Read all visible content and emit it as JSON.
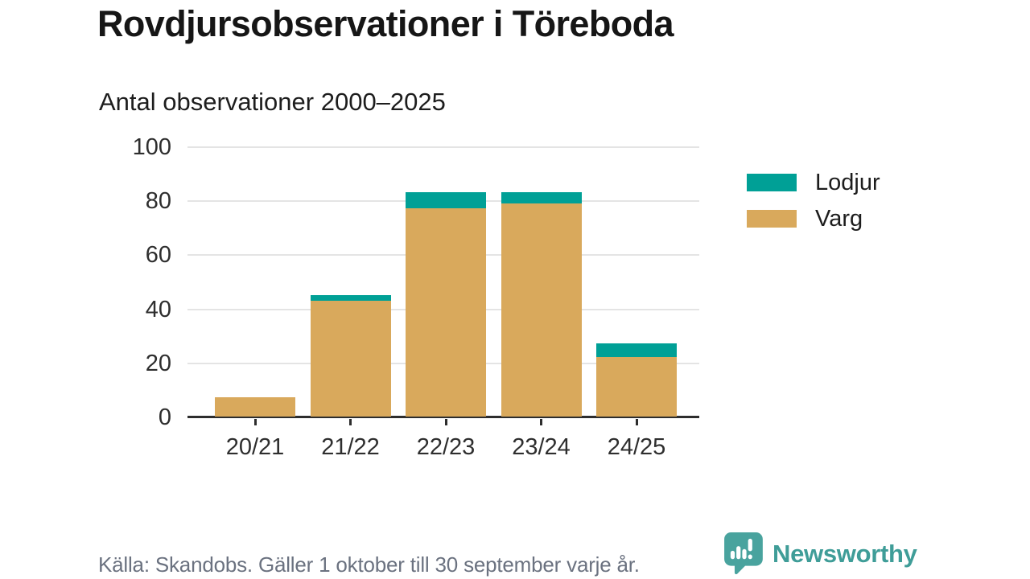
{
  "header": {
    "title": "Rovdjursobservationer i Töreboda",
    "subtitle": "Antal observationer 2000–2025"
  },
  "chart_data": {
    "type": "bar",
    "stacked": true,
    "title": "Rovdjursobservationer i Töreboda",
    "subtitle": "Antal observationer 2000–2025",
    "categories": [
      "20/21",
      "21/22",
      "22/23",
      "23/24",
      "24/25"
    ],
    "series": [
      {
        "name": "Lodjur",
        "color": "#00a096",
        "values": [
          0,
          2,
          6,
          4,
          5
        ]
      },
      {
        "name": "Varg",
        "color": "#d9a95c",
        "values": [
          7,
          43,
          77,
          79,
          22
        ]
      }
    ],
    "stack_order": [
      "Varg",
      "Lodjur"
    ],
    "totals": [
      7,
      45,
      83,
      83,
      27
    ],
    "xlabel": "",
    "ylabel": "",
    "ylim": [
      0,
      100
    ],
    "yticks": [
      0,
      20,
      40,
      60,
      80,
      100
    ],
    "grid": "horizontal",
    "legend_position": "right"
  },
  "colors": {
    "lodjur_teal": "#00a096",
    "varg_gold": "#d9a95c",
    "gridline": "#e4e4e4",
    "axis": "#2d2d2d",
    "brand_teal": "#49a39e",
    "brand_text_teal": "#3f9d98",
    "source_gray": "#6b7280"
  },
  "footer": {
    "source": "Källa: Skandobs. Gäller 1 oktober till 30 september varje år.",
    "brand": "Newsworthy"
  }
}
